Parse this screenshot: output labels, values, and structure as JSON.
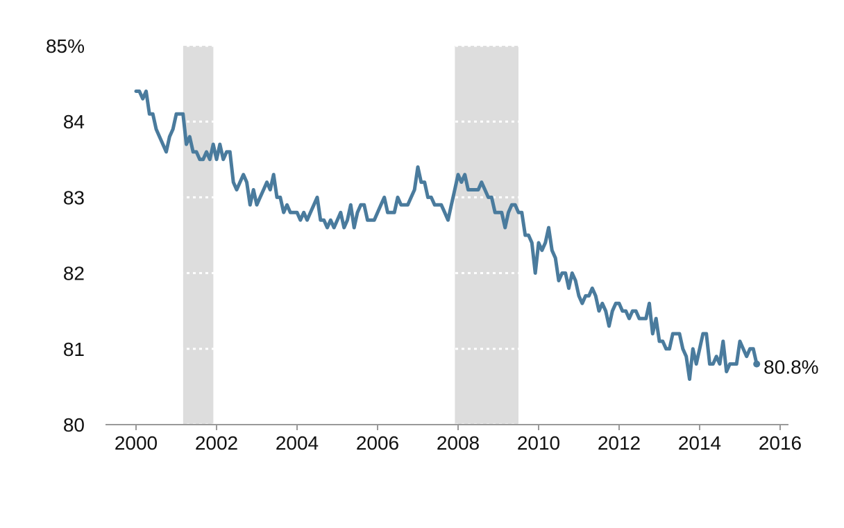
{
  "chart_data": {
    "type": "line",
    "title": "",
    "xlabel": "",
    "ylabel": "",
    "xlim": [
      1999.6,
      2016.1
    ],
    "ylim": [
      80,
      85
    ],
    "x_ticks": [
      2000,
      2002,
      2004,
      2006,
      2008,
      2010,
      2012,
      2014,
      2016
    ],
    "x_tick_labels": [
      "2000",
      "2002",
      "2004",
      "2006",
      "2008",
      "2010",
      "2012",
      "2014",
      "2016"
    ],
    "y_ticks": [
      80,
      81,
      82,
      83,
      84,
      85
    ],
    "y_tick_labels": [
      "80",
      "81",
      "82",
      "83",
      "84",
      "85%"
    ],
    "grid": "dotted white horizontal lines drawn only inside recession bands",
    "recessions": [
      {
        "start": 2001.17,
        "end": 2001.92
      },
      {
        "start": 2007.92,
        "end": 2009.5
      }
    ],
    "series": [
      {
        "color": "#4a7b9d",
        "x": [
          2000.0,
          2000.083,
          2000.167,
          2000.25,
          2000.333,
          2000.417,
          2000.5,
          2000.583,
          2000.667,
          2000.75,
          2000.833,
          2000.917,
          2001.0,
          2001.083,
          2001.167,
          2001.25,
          2001.333,
          2001.417,
          2001.5,
          2001.583,
          2001.667,
          2001.75,
          2001.833,
          2001.917,
          2002.0,
          2002.083,
          2002.167,
          2002.25,
          2002.333,
          2002.417,
          2002.5,
          2002.583,
          2002.667,
          2002.75,
          2002.833,
          2002.917,
          2003.0,
          2003.083,
          2003.167,
          2003.25,
          2003.333,
          2003.417,
          2003.5,
          2003.583,
          2003.667,
          2003.75,
          2003.833,
          2003.917,
          2004.0,
          2004.083,
          2004.167,
          2004.25,
          2004.333,
          2004.417,
          2004.5,
          2004.583,
          2004.667,
          2004.75,
          2004.833,
          2004.917,
          2005.0,
          2005.083,
          2005.167,
          2005.25,
          2005.333,
          2005.417,
          2005.5,
          2005.583,
          2005.667,
          2005.75,
          2005.833,
          2005.917,
          2006.0,
          2006.083,
          2006.167,
          2006.25,
          2006.333,
          2006.417,
          2006.5,
          2006.583,
          2006.667,
          2006.75,
          2006.833,
          2006.917,
          2007.0,
          2007.083,
          2007.167,
          2007.25,
          2007.333,
          2007.417,
          2007.5,
          2007.583,
          2007.667,
          2007.75,
          2007.833,
          2007.917,
          2008.0,
          2008.083,
          2008.167,
          2008.25,
          2008.333,
          2008.417,
          2008.5,
          2008.583,
          2008.667,
          2008.75,
          2008.833,
          2008.917,
          2009.0,
          2009.083,
          2009.167,
          2009.25,
          2009.333,
          2009.417,
          2009.5,
          2009.583,
          2009.667,
          2009.75,
          2009.833,
          2009.917,
          2010.0,
          2010.083,
          2010.167,
          2010.25,
          2010.333,
          2010.417,
          2010.5,
          2010.583,
          2010.667,
          2010.75,
          2010.833,
          2010.917,
          2011.0,
          2011.083,
          2011.167,
          2011.25,
          2011.333,
          2011.417,
          2011.5,
          2011.583,
          2011.667,
          2011.75,
          2011.833,
          2011.917,
          2012.0,
          2012.083,
          2012.167,
          2012.25,
          2012.333,
          2012.417,
          2012.5,
          2012.583,
          2012.667,
          2012.75,
          2012.833,
          2012.917,
          2013.0,
          2013.083,
          2013.167,
          2013.25,
          2013.333,
          2013.417,
          2013.5,
          2013.583,
          2013.667,
          2013.75,
          2013.833,
          2013.917,
          2014.0,
          2014.083,
          2014.167,
          2014.25,
          2014.333,
          2014.417,
          2014.5,
          2014.583,
          2014.667,
          2014.75,
          2014.833,
          2014.917,
          2015.0,
          2015.083,
          2015.167,
          2015.25,
          2015.333,
          2015.417
        ],
        "values": [
          84.4,
          84.4,
          84.3,
          84.4,
          84.1,
          84.1,
          83.9,
          83.8,
          83.7,
          83.6,
          83.8,
          83.9,
          84.1,
          84.1,
          84.1,
          83.7,
          83.8,
          83.6,
          83.6,
          83.5,
          83.5,
          83.6,
          83.5,
          83.7,
          83.5,
          83.7,
          83.5,
          83.6,
          83.6,
          83.2,
          83.1,
          83.2,
          83.3,
          83.2,
          82.9,
          83.1,
          82.9,
          83.0,
          83.1,
          83.2,
          83.1,
          83.3,
          83.0,
          83.0,
          82.8,
          82.9,
          82.8,
          82.8,
          82.8,
          82.7,
          82.8,
          82.7,
          82.8,
          82.9,
          83.0,
          82.7,
          82.7,
          82.6,
          82.7,
          82.6,
          82.7,
          82.8,
          82.6,
          82.7,
          82.9,
          82.6,
          82.8,
          82.9,
          82.9,
          82.7,
          82.7,
          82.7,
          82.8,
          82.9,
          83.0,
          82.8,
          82.8,
          82.8,
          83.0,
          82.9,
          82.9,
          82.9,
          83.0,
          83.1,
          83.4,
          83.2,
          83.2,
          83.0,
          83.0,
          82.9,
          82.9,
          82.9,
          82.8,
          82.7,
          82.9,
          83.1,
          83.3,
          83.2,
          83.3,
          83.1,
          83.1,
          83.1,
          83.1,
          83.2,
          83.1,
          83.0,
          83.0,
          82.8,
          82.8,
          82.8,
          82.6,
          82.8,
          82.9,
          82.9,
          82.8,
          82.8,
          82.5,
          82.5,
          82.4,
          82.0,
          82.4,
          82.3,
          82.4,
          82.6,
          82.3,
          82.2,
          81.9,
          82.0,
          82.0,
          81.8,
          82.0,
          81.9,
          81.7,
          81.6,
          81.7,
          81.7,
          81.8,
          81.7,
          81.5,
          81.6,
          81.5,
          81.3,
          81.5,
          81.6,
          81.6,
          81.5,
          81.5,
          81.4,
          81.5,
          81.5,
          81.4,
          81.4,
          81.4,
          81.6,
          81.2,
          81.4,
          81.1,
          81.1,
          81.0,
          81.0,
          81.2,
          81.2,
          81.2,
          81.0,
          80.9,
          80.6,
          81.0,
          80.8,
          81.0,
          81.2,
          81.2,
          80.8,
          80.8,
          80.9,
          80.8,
          81.1,
          80.7,
          80.8,
          80.8,
          80.8,
          81.1,
          81.0,
          80.9,
          81.0,
          81.0,
          80.8
        ]
      }
    ],
    "end_label": "80.8%"
  }
}
